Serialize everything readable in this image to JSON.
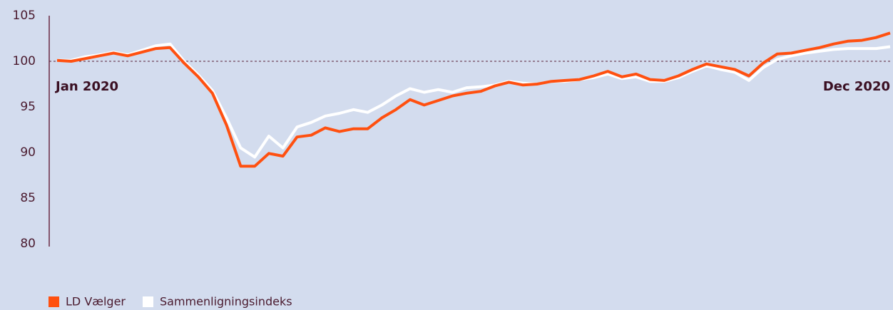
{
  "chart_data": {
    "type": "line",
    "categories": [
      "Jan 2020",
      null,
      null,
      null,
      null,
      null,
      null,
      null,
      null,
      null,
      null,
      null,
      null,
      null,
      null,
      null,
      null,
      null,
      null,
      null,
      null,
      null,
      null,
      null,
      null,
      null,
      null,
      null,
      null,
      null,
      null,
      null,
      null,
      null,
      null,
      null,
      null,
      null,
      null,
      null,
      null,
      null,
      null,
      null,
      null,
      null,
      null,
      null,
      null,
      null,
      null,
      null,
      null,
      null,
      null,
      null,
      null,
      null,
      null,
      "Dec 2020"
    ],
    "series": [
      {
        "name": "Sammenligningsindeks",
        "color": "#ffffff",
        "values": [
          100.1,
          100.1,
          100.5,
          100.7,
          101.0,
          100.7,
          101.2,
          101.7,
          101.9,
          100.0,
          98.5,
          96.8,
          93.8,
          90.5,
          89.5,
          91.8,
          90.5,
          92.8,
          93.3,
          94.0,
          94.3,
          94.7,
          94.4,
          95.2,
          96.2,
          97.0,
          96.6,
          96.9,
          96.6,
          97.1,
          97.2,
          97.4,
          97.8,
          97.6,
          97.5,
          97.8,
          97.8,
          98.0,
          98.2,
          98.6,
          98.1,
          98.3,
          97.8,
          97.8,
          98.2,
          98.9,
          99.5,
          99.1,
          98.8,
          97.9,
          99.3,
          100.2,
          100.6,
          100.9,
          101.1,
          101.3,
          101.4,
          101.4,
          101.4,
          101.6
        ]
      },
      {
        "name": "LD Vælger",
        "color": "#ff5010",
        "values": [
          100.1,
          100.0,
          100.3,
          100.6,
          100.9,
          100.6,
          101.0,
          101.4,
          101.5,
          99.8,
          98.3,
          96.5,
          93.0,
          88.5,
          88.5,
          89.9,
          89.6,
          91.7,
          91.9,
          92.7,
          92.3,
          92.6,
          92.6,
          93.8,
          94.7,
          95.8,
          95.2,
          95.7,
          96.2,
          96.5,
          96.7,
          97.3,
          97.7,
          97.4,
          97.5,
          97.8,
          97.9,
          98.0,
          98.4,
          98.9,
          98.3,
          98.6,
          98.0,
          97.9,
          98.4,
          99.1,
          99.7,
          99.4,
          99.1,
          98.4,
          99.8,
          100.8,
          100.9,
          101.2,
          101.5,
          101.9,
          102.2,
          102.3,
          102.6,
          103.1
        ]
      }
    ],
    "legend_order": [
      1,
      0
    ],
    "reference_line": 100,
    "ylim": [
      80,
      105
    ],
    "yticks": [
      80,
      85,
      90,
      95,
      100,
      105
    ]
  }
}
